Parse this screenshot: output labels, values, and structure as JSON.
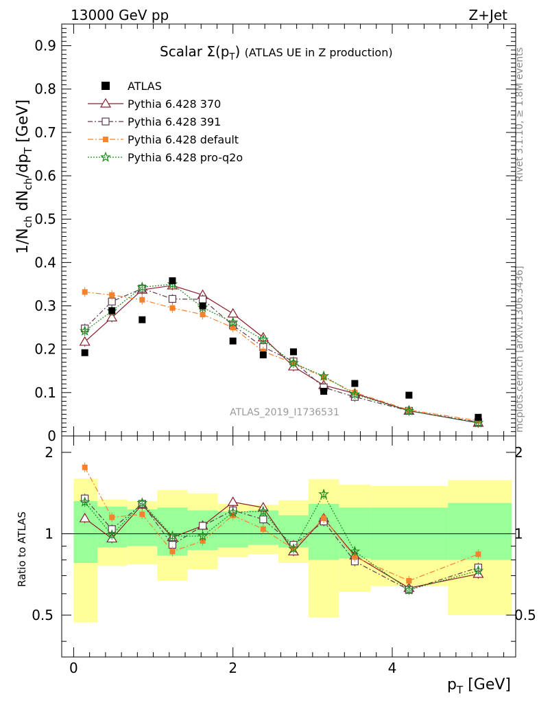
{
  "header": {
    "left": "13000 GeV pp",
    "right": "Z+Jet"
  },
  "side_labels": {
    "top": "Rivet 3.1.10, ≥ 1.8M events",
    "bottom": "mcplots.cern.ch [arXiv:1306.3436]"
  },
  "chart_data": {
    "type": "scatter",
    "title_main": "Scalar Σ(p",
    "title_sub": "T",
    "title_close": ")",
    "title_rest": "(ATLAS UE in Z production)",
    "analysis_id": "ATLAS_2019_I1736531",
    "xlabel": "p",
    "xlabel_sub": "T",
    "xlabel_unit": "[GeV]",
    "ylabel": "1/N",
    "ylabel_sub1": "ch",
    "ylabel_mid": " dN",
    "ylabel_sub2": "ch",
    "ylabel_mid2": "/dp",
    "ylabel_sub3": "T",
    "ylabel_unit": " [GeV]",
    "ratio_ylabel": "Ratio to ATLAS",
    "xlim": [
      -0.15,
      5.55
    ],
    "ylim": [
      0,
      0.95
    ],
    "ratio_ylim": [
      0.35,
      2.3
    ],
    "x_ticks": [
      "0",
      "2",
      "4"
    ],
    "y_ticks": [
      "0",
      "0.1",
      "0.2",
      "0.3",
      "0.4",
      "0.5",
      "0.6",
      "0.7",
      "0.8",
      "0.9"
    ],
    "ratio_ticks": [
      "0.5",
      "1",
      "2"
    ],
    "x": [
      0.14,
      0.48,
      0.86,
      1.24,
      1.62,
      2.0,
      2.38,
      2.76,
      3.14,
      3.53,
      4.21,
      5.08
    ],
    "bin_edges": [
      0.0,
      0.3,
      0.67,
      1.05,
      1.43,
      1.81,
      2.19,
      2.57,
      2.95,
      3.33,
      3.73,
      4.7,
      5.5
    ],
    "data": {
      "name": "ATLAS",
      "values": [
        0.192,
        0.289,
        0.268,
        0.358,
        0.3,
        0.219,
        0.187,
        0.194,
        0.103,
        0.121,
        0.094,
        0.043
      ]
    },
    "bands": {
      "inner": [
        [
          0.78,
          1.32
        ],
        [
          0.89,
          1.26
        ],
        [
          0.9,
          1.23
        ],
        [
          0.83,
          1.25
        ],
        [
          0.87,
          1.22
        ],
        [
          0.89,
          1.21
        ],
        [
          0.91,
          1.22
        ],
        [
          0.89,
          1.17
        ],
        [
          0.8,
          1.29
        ],
        [
          0.81,
          1.25
        ],
        [
          0.8,
          1.25
        ],
        [
          0.8,
          1.3
        ]
      ],
      "outer": [
        [
          0.47,
          1.6
        ],
        [
          0.76,
          1.34
        ],
        [
          0.77,
          1.32
        ],
        [
          0.67,
          1.45
        ],
        [
          0.74,
          1.41
        ],
        [
          0.82,
          1.29
        ],
        [
          0.84,
          1.28
        ],
        [
          0.78,
          1.33
        ],
        [
          0.49,
          1.59
        ],
        [
          0.61,
          1.52
        ],
        [
          0.64,
          1.5
        ],
        [
          0.5,
          1.58
        ]
      ]
    },
    "series": [
      {
        "name": "Pythia 6.428 370",
        "color": "#8b1a2a",
        "dash": "",
        "marker": "triangle",
        "values": [
          0.217,
          0.273,
          0.337,
          0.347,
          0.325,
          0.282,
          0.227,
          0.16,
          0.117,
          0.098,
          0.058,
          0.03
        ],
        "ratio": [
          1.14,
          0.96,
          1.28,
          0.97,
          1.07,
          1.31,
          1.25,
          0.86,
          1.14,
          0.83,
          0.63,
          0.71
        ]
      },
      {
        "name": "Pythia 6.428 391",
        "color": "#5b3a4e",
        "dash": "7,3,2,3",
        "marker": "square",
        "values": [
          0.248,
          0.31,
          0.34,
          0.316,
          0.315,
          0.255,
          0.205,
          0.172,
          0.112,
          0.09,
          0.058,
          0.032
        ],
        "ratio": [
          1.35,
          1.04,
          1.29,
          0.91,
          1.07,
          1.22,
          1.13,
          0.91,
          1.11,
          0.79,
          0.62,
          0.75
        ]
      },
      {
        "name": "Pythia 6.428 default",
        "color": "#f5822e",
        "dash": "8,3,2,3",
        "marker": "filled-square",
        "values": [
          0.332,
          0.325,
          0.314,
          0.295,
          0.28,
          0.25,
          0.195,
          0.168,
          0.135,
          0.1,
          0.06,
          0.035
        ],
        "ratio": [
          1.76,
          1.15,
          1.18,
          0.86,
          0.94,
          1.17,
          1.04,
          0.88,
          1.14,
          0.82,
          0.67,
          0.84
        ]
      },
      {
        "name": "Pythia 6.428 pro-q2o",
        "color": "#1e8a1e",
        "dash": "2,2",
        "marker": "star",
        "values": [
          0.242,
          0.288,
          0.343,
          0.35,
          0.296,
          0.262,
          0.222,
          0.168,
          0.138,
          0.096,
          0.058,
          0.03
        ],
        "ratio": [
          1.31,
          0.99,
          1.3,
          0.98,
          0.98,
          1.2,
          1.21,
          0.88,
          1.4,
          0.86,
          0.62,
          0.73
        ]
      }
    ]
  }
}
